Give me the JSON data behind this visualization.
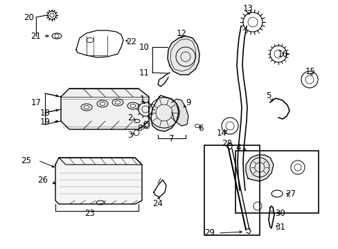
{
  "background_color": "#ffffff",
  "line_color": "#000000",
  "text_color": "#000000",
  "font_size": 8.5,
  "fig_w": 4.89,
  "fig_h": 3.6,
  "dpi": 100
}
